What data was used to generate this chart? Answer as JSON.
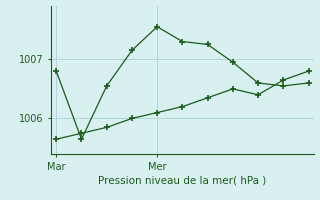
{
  "title": "Pression niveau de la mer( hPa )",
  "background_color": "#d9f0f0",
  "grid_color": "#b0d8d8",
  "line_color": "#1a5c1a",
  "marker": "+",
  "marker_size": 5,
  "marker_lw": 1.2,
  "line_width": 0.9,
  "ylim": [
    1005.4,
    1007.9
  ],
  "yticks": [
    1006,
    1007
  ],
  "xlim": [
    -0.2,
    10.2
  ],
  "xtick_pos": [
    0,
    4
  ],
  "xtick_labels": [
    "Mar",
    "Mer"
  ],
  "series1_x": [
    0,
    1,
    2,
    3,
    4,
    5,
    6,
    7,
    8,
    9,
    10
  ],
  "series1_y": [
    1006.8,
    1005.65,
    1006.55,
    1007.15,
    1007.55,
    1007.3,
    1007.25,
    1006.95,
    1006.6,
    1006.55,
    1006.6
  ],
  "series2_x": [
    0,
    1,
    2,
    3,
    4,
    5,
    6,
    7,
    8,
    9,
    10
  ],
  "series2_y": [
    1005.65,
    1005.75,
    1005.85,
    1006.0,
    1006.1,
    1006.2,
    1006.35,
    1006.5,
    1006.4,
    1006.65,
    1006.8
  ]
}
